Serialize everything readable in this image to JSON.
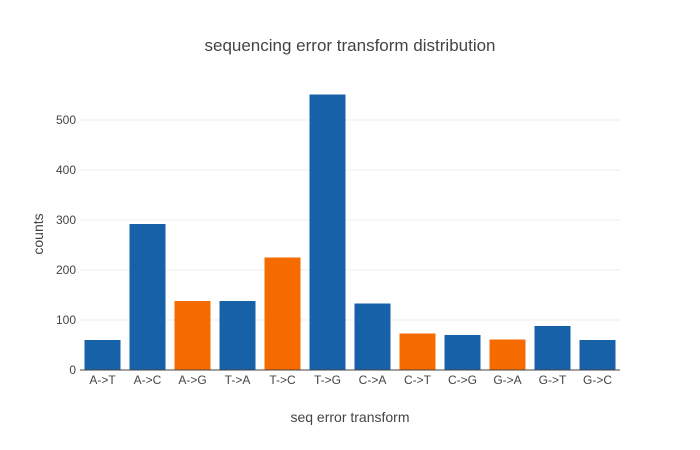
{
  "chart_data": {
    "type": "bar",
    "title": "sequencing error transform distribution",
    "xlabel": "seq error transform",
    "ylabel": "counts",
    "categories": [
      "A->T",
      "A->C",
      "A->G",
      "T->A",
      "T->C",
      "T->G",
      "C->A",
      "C->T",
      "C->G",
      "G->A",
      "G->T",
      "G->C"
    ],
    "values": [
      60,
      292,
      138,
      138,
      225,
      551,
      133,
      73,
      70,
      61,
      88,
      60
    ],
    "bar_colors": [
      "#1761a8",
      "#1761a8",
      "#f56b00",
      "#1761a8",
      "#f56b00",
      "#1761a8",
      "#1761a8",
      "#f56b00",
      "#1761a8",
      "#f56b00",
      "#1761a8",
      "#1761a8"
    ],
    "ylim": [
      0,
      580
    ],
    "yticks": [
      0,
      100,
      200,
      300,
      400,
      500
    ],
    "grid": true,
    "legend": "none"
  }
}
